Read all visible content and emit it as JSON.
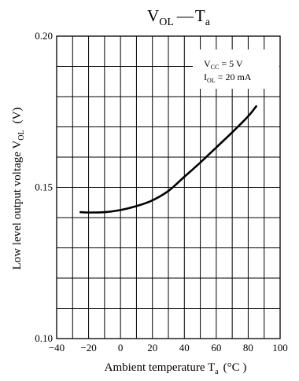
{
  "chart_data": {
    "type": "line",
    "title": {
      "main": "V",
      "sub": "OL",
      "separator": "—",
      "rest": "T",
      "rest_sub": "a"
    },
    "xlabel": {
      "text": "Ambient temperature  T",
      "sub": "a",
      "unit": "(°C )"
    },
    "ylabel": {
      "text": "Low level output voltage  V",
      "sub": "OL",
      "unit": "(V)"
    },
    "xlim": [
      -40,
      100
    ],
    "ylim": [
      0.1,
      0.2
    ],
    "x_ticks": [
      -40,
      -20,
      0,
      20,
      40,
      60,
      80,
      100
    ],
    "x_tick_labels": [
      "−40",
      "−20",
      "0",
      "20",
      "40",
      "60",
      "80",
      "100"
    ],
    "y_tick_labels": [
      {
        "value": 0.1,
        "label": "0.10"
      },
      {
        "value": 0.15,
        "label": "0.15"
      },
      {
        "value": 0.2,
        "label": "0.20"
      }
    ],
    "x_grid_step": 10,
    "y_grid_step": 0.01,
    "grid": true,
    "conditions": {
      "line1": {
        "text": "V",
        "sub": "CC",
        "rest": " = 5 V"
      },
      "line2": {
        "text": "I",
        "sub": "OL",
        "rest": " = 20 mA"
      },
      "position": "top-right"
    },
    "series": [
      {
        "color": "#000000",
        "x": [
          -25,
          -20,
          -10,
          0,
          10,
          20,
          30,
          40,
          50,
          60,
          70,
          80,
          85
        ],
        "y": [
          0.1418,
          0.1417,
          0.1418,
          0.1425,
          0.1438,
          0.1457,
          0.1488,
          0.1535,
          0.1582,
          0.1632,
          0.1682,
          0.1735,
          0.1768
        ]
      }
    ]
  }
}
